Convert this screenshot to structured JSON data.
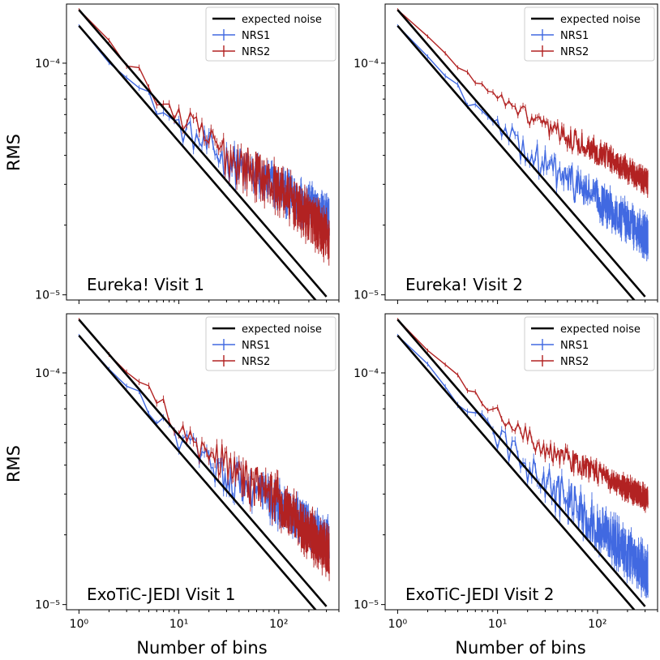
{
  "figure": {
    "ylabel": "RMS",
    "xlabel": "Number of bins",
    "colors": {
      "expected": "#000000",
      "nrs1": "#4169e1",
      "nrs2": "#b22222"
    }
  },
  "chart_data": [
    {
      "type": "line",
      "title": "Eureka! Visit 1",
      "xscale": "log",
      "yscale": "log",
      "xlim": [
        0.75,
        400
      ],
      "ylim": [
        9.5e-06,
        0.00018
      ],
      "xlabel": "",
      "ylabel": "RMS",
      "xticks": [
        "",
        "",
        ""
      ],
      "yticks": [
        "10⁻⁴",
        "10⁻⁵"
      ],
      "legend": {
        "position": "top-right",
        "entries": [
          "expected noise",
          "NRS1",
          "NRS2"
        ]
      },
      "series": [
        {
          "name": "expected noise",
          "color": "#000000",
          "expected": true,
          "start": 0.000145,
          "slope": -0.5
        },
        {
          "name": "expected noise",
          "color": "#000000",
          "expected": true,
          "start": 0.00017,
          "slope": -0.5
        },
        {
          "name": "NRS1",
          "color": "#4169e1",
          "start": 0.000145,
          "points": [
            [
              1,
              0.000145
            ],
            [
              3,
              8.6e-05
            ],
            [
              10,
              5.3e-05
            ],
            [
              30,
              3.8e-05
            ],
            [
              100,
              2.9e-05
            ],
            [
              300,
              2.2e-05
            ]
          ],
          "noise": 0.18
        },
        {
          "name": "NRS2",
          "color": "#b22222",
          "start": 0.00017,
          "points": [
            [
              1,
              0.00017
            ],
            [
              3,
              0.0001
            ],
            [
              10,
              5.8e-05
            ],
            [
              30,
              4e-05
            ],
            [
              100,
              2.9e-05
            ],
            [
              300,
              1.8e-05
            ]
          ],
          "noise": 0.2
        }
      ]
    },
    {
      "type": "line",
      "title": "Eureka! Visit 2",
      "xscale": "log",
      "yscale": "log",
      "xlim": [
        0.75,
        400
      ],
      "ylim": [
        9.5e-06,
        0.00018
      ],
      "xlabel": "",
      "ylabel": "",
      "xticks": [
        "",
        "",
        ""
      ],
      "yticks": [
        "10⁻⁴",
        "10⁻⁵"
      ],
      "legend": {
        "position": "top-right",
        "entries": [
          "expected noise",
          "NRS1",
          "NRS2"
        ]
      },
      "series": [
        {
          "name": "expected noise",
          "color": "#000000",
          "expected": true,
          "start": 0.000145,
          "slope": -0.5
        },
        {
          "name": "expected noise",
          "color": "#000000",
          "expected": true,
          "start": 0.00017,
          "slope": -0.5
        },
        {
          "name": "NRS1",
          "color": "#4169e1",
          "start": 0.000145,
          "points": [
            [
              1,
              0.000145
            ],
            [
              3,
              8.8e-05
            ],
            [
              10,
              5.2e-05
            ],
            [
              30,
              3.6e-05
            ],
            [
              100,
              2.6e-05
            ],
            [
              300,
              1.8e-05
            ]
          ],
          "noise": 0.16
        },
        {
          "name": "NRS2",
          "color": "#b22222",
          "start": 0.00017,
          "points": [
            [
              1,
              0.00017
            ],
            [
              3,
              0.000108
            ],
            [
              10,
              7e-05
            ],
            [
              30,
              5.2e-05
            ],
            [
              100,
              4.2e-05
            ],
            [
              300,
              3.1e-05
            ]
          ],
          "noise": 0.1
        }
      ]
    },
    {
      "type": "line",
      "title": "ExoTiC-JEDI Visit 1",
      "xscale": "log",
      "yscale": "log",
      "xlim": [
        0.75,
        400
      ],
      "ylim": [
        9.5e-06,
        0.00018
      ],
      "xlabel": "Number of bins",
      "ylabel": "RMS",
      "xticks": [
        "10⁰",
        "10¹",
        "10²"
      ],
      "yticks": [
        "10⁻⁴",
        "10⁻⁵"
      ],
      "legend": {
        "position": "top-right",
        "entries": [
          "expected noise",
          "NRS1",
          "NRS2"
        ]
      },
      "series": [
        {
          "name": "expected noise",
          "color": "#000000",
          "expected": true,
          "start": 0.000145,
          "slope": -0.5
        },
        {
          "name": "expected noise",
          "color": "#000000",
          "expected": true,
          "start": 0.00017,
          "slope": -0.5
        },
        {
          "name": "NRS1",
          "color": "#4169e1",
          "start": 0.000145,
          "points": [
            [
              1,
              0.000145
            ],
            [
              3,
              8.8e-05
            ],
            [
              10,
              5.2e-05
            ],
            [
              30,
              3.6e-05
            ],
            [
              100,
              2.7e-05
            ],
            [
              300,
              1.9e-05
            ]
          ],
          "noise": 0.18
        },
        {
          "name": "NRS2",
          "color": "#b22222",
          "start": 0.00017,
          "points": [
            [
              1,
              0.00017
            ],
            [
              3,
              0.000103
            ],
            [
              10,
              5.8e-05
            ],
            [
              30,
              3.9e-05
            ],
            [
              100,
              2.8e-05
            ],
            [
              300,
              1.7e-05
            ]
          ],
          "noise": 0.2
        }
      ]
    },
    {
      "type": "line",
      "title": "ExoTiC-JEDI Visit 2",
      "xscale": "log",
      "yscale": "log",
      "xlim": [
        0.75,
        400
      ],
      "ylim": [
        9.5e-06,
        0.00018
      ],
      "xlabel": "Number of bins",
      "ylabel": "",
      "xticks": [
        "10⁰",
        "10¹",
        "10²"
      ],
      "yticks": [
        "10⁻⁴",
        "10⁻⁵"
      ],
      "legend": {
        "position": "top-right",
        "entries": [
          "expected noise",
          "NRS1",
          "NRS2"
        ]
      },
      "series": [
        {
          "name": "expected noise",
          "color": "#000000",
          "expected": true,
          "start": 0.000145,
          "slope": -0.5
        },
        {
          "name": "expected noise",
          "color": "#000000",
          "expected": true,
          "start": 0.00017,
          "slope": -0.5
        },
        {
          "name": "NRS1",
          "color": "#4169e1",
          "start": 0.000145,
          "points": [
            [
              1,
              0.000145
            ],
            [
              3,
              8.8e-05
            ],
            [
              10,
              5.2e-05
            ],
            [
              30,
              3.3e-05
            ],
            [
              100,
              2.2e-05
            ],
            [
              300,
              1.4e-05
            ]
          ],
          "noise": 0.2
        },
        {
          "name": "NRS2",
          "color": "#b22222",
          "start": 0.00017,
          "points": [
            [
              1,
              0.00017
            ],
            [
              3,
              0.000106
            ],
            [
              10,
              6.6e-05
            ],
            [
              30,
              4.7e-05
            ],
            [
              100,
              3.7e-05
            ],
            [
              300,
              2.9e-05
            ]
          ],
          "noise": 0.1
        }
      ]
    }
  ]
}
